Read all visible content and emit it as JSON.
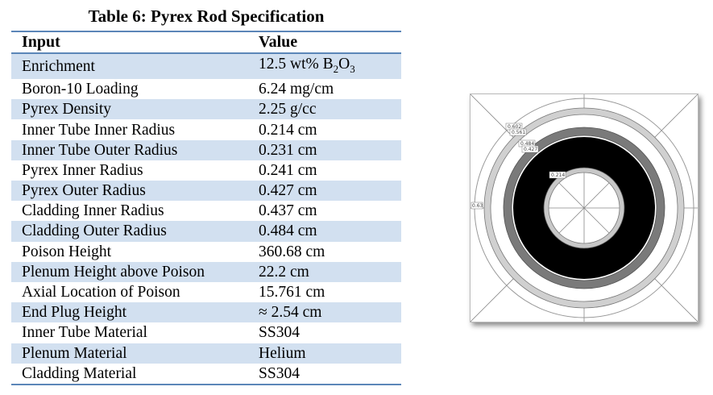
{
  "title": "Table 6:  Pyrex Rod Specification",
  "table": {
    "headers": {
      "input": "Input",
      "value": "Value"
    },
    "rows": [
      {
        "input": "Enrichment",
        "value_main": "12.5 wt% B",
        "value_sub1": "2",
        "value_mid": "O",
        "value_sub2": "3"
      },
      {
        "input": "Boron-10 Loading",
        "value": "6.24 mg/cm"
      },
      {
        "input": "Pyrex Density",
        "value": "2.25 g/cc"
      },
      {
        "input": "Inner Tube Inner Radius",
        "value": "0.214 cm"
      },
      {
        "input": "Inner Tube Outer Radius",
        "value": "0.231 cm"
      },
      {
        "input": "Pyrex Inner Radius",
        "value": "0.241 cm"
      },
      {
        "input": "Pyrex Outer Radius",
        "value": "0.427 cm"
      },
      {
        "input": "Cladding Inner Radius",
        "value": "0.437 cm"
      },
      {
        "input": "Cladding Outer Radius",
        "value": "0.484 cm"
      },
      {
        "input": "Poison Height",
        "value": "360.68 cm"
      },
      {
        "input": "Plenum Height above Poison",
        "value": "22.2 cm"
      },
      {
        "input": "Axial Location of Poison",
        "value": "15.761 cm"
      },
      {
        "input": "End Plug Height",
        "value": "≈ 2.54 cm"
      },
      {
        "input": "Inner Tube Material",
        "value": "SS304"
      },
      {
        "input": "Plenum Material",
        "value": "Helium"
      },
      {
        "input": "Cladding Material",
        "value": "SS304"
      }
    ]
  },
  "figure": {
    "labels": {
      "r1": "0.602",
      "r2": "0.561",
      "r3": "0.484",
      "r4": "0.427",
      "r5": "0.214",
      "r6": "0.63"
    }
  }
}
